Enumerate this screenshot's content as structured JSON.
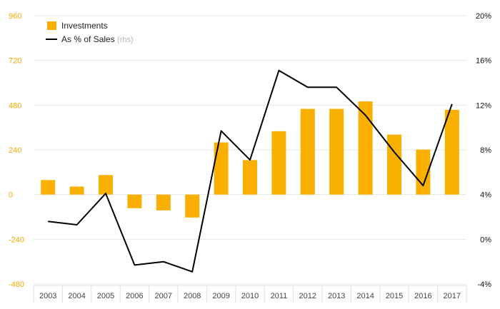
{
  "chart_data": {
    "type": "bar+line",
    "categories": [
      "2003",
      "2004",
      "2005",
      "2006",
      "2007",
      "2008",
      "2009",
      "2010",
      "2011",
      "2012",
      "2013",
      "2014",
      "2015",
      "2016",
      "2017"
    ],
    "series": [
      {
        "name": "Investments",
        "type": "bar",
        "axis": "left",
        "color": "#F9B000",
        "values": [
          78,
          43,
          105,
          -73,
          -85,
          -123,
          280,
          185,
          340,
          460,
          460,
          500,
          322,
          242,
          455
        ]
      },
      {
        "name": "As % of Sales",
        "type": "line",
        "axis": "right",
        "color": "#000000",
        "values": [
          1.6,
          1.3,
          4.1,
          -2.3,
          -2.0,
          -2.9,
          9.7,
          7.1,
          15.1,
          13.6,
          13.6,
          11.1,
          7.8,
          4.8,
          12.1
        ]
      }
    ],
    "legend": {
      "investments": "Investments",
      "line": "As % of Sales",
      "line_note": "(rhs)",
      "position": "top-left"
    },
    "y_left": {
      "min": -480,
      "max": 960,
      "ticks": [
        "960",
        "720",
        "480",
        "240",
        "0",
        "-240",
        "-480"
      ],
      "tick_values": [
        960,
        720,
        480,
        240,
        0,
        -240,
        -480
      ]
    },
    "y_right": {
      "min": -4,
      "max": 20,
      "ticks": [
        "20%",
        "16%",
        "12%",
        "8%",
        "4%",
        "0%",
        "-4%"
      ],
      "tick_values": [
        20,
        16,
        12,
        8,
        4,
        0,
        -4
      ]
    },
    "colors": {
      "left_axis": "#F5A800",
      "right_axis": "#111111",
      "grid": "#e6e6e6"
    }
  }
}
